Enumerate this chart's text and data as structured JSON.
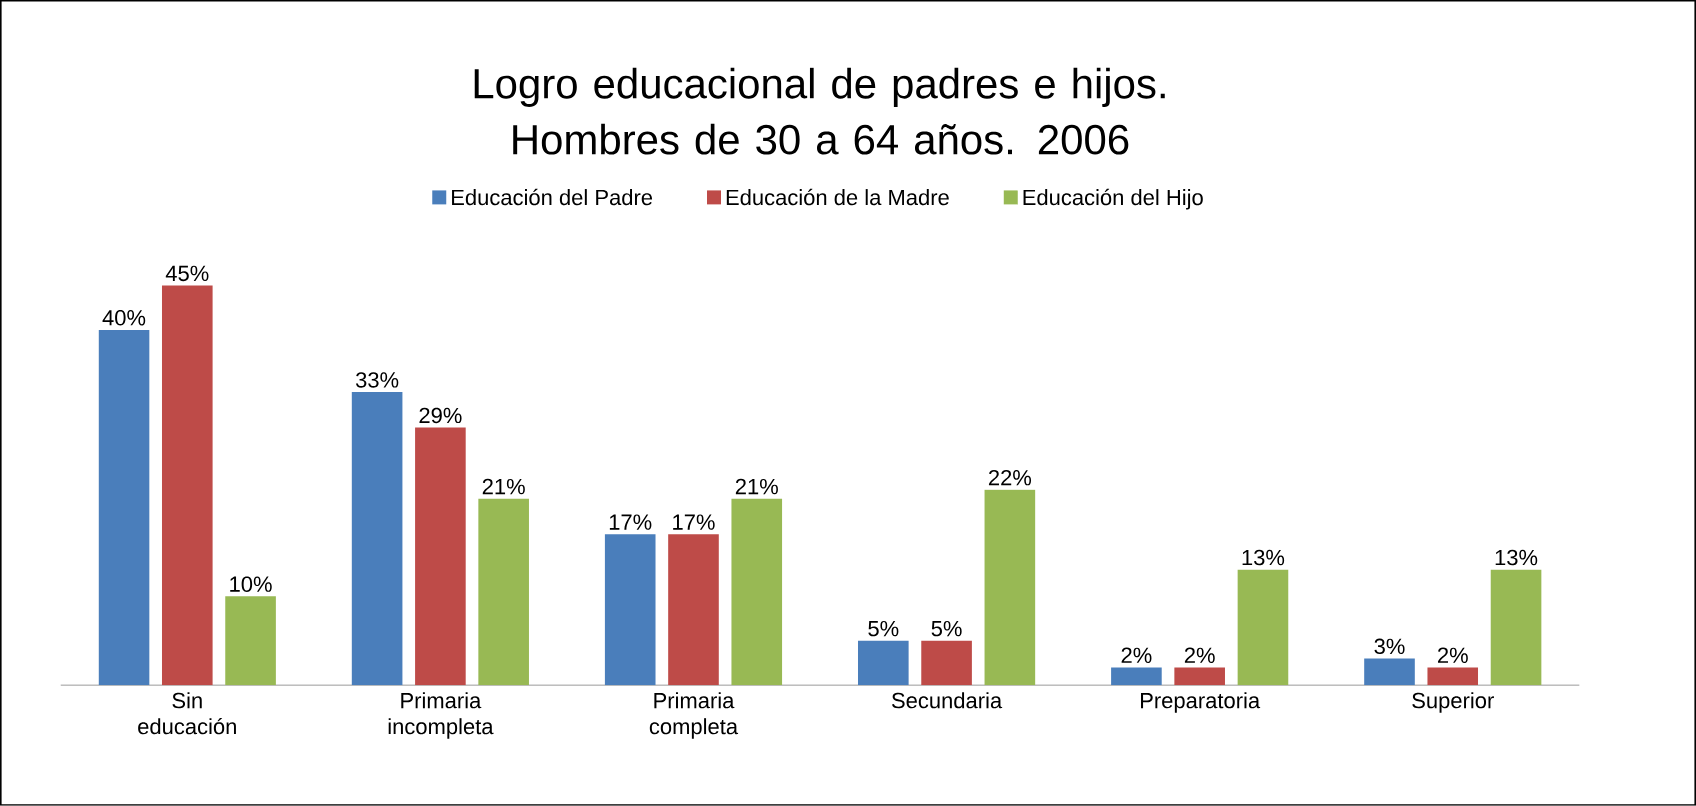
{
  "chart_data": {
    "type": "bar",
    "title": "Logro educacional de padres e hijos. Hombres  de 30 a 64 años. 2006",
    "categories": [
      "Sin educación",
      "Primaria incompleta",
      "Primaria completa",
      "Secundaria",
      "Preparatoria",
      "Superior"
    ],
    "series": [
      {
        "name": "Educación del Padre",
        "color": "#4a7ebb",
        "values": [
          40,
          33,
          17,
          5,
          2,
          3
        ],
        "value_labels": [
          "40%",
          "33%",
          "17%",
          "5%",
          "2%",
          "3%"
        ]
      },
      {
        "name": "Educación de la Madre",
        "color": "#be4b48",
        "values": [
          45,
          29,
          17,
          5,
          2,
          2
        ],
        "value_labels": [
          "45%",
          "29%",
          "17%",
          "5%",
          "2%",
          "2%"
        ]
      },
      {
        "name": "Educación del Hijo",
        "color": "#98b954",
        "values": [
          10,
          21,
          21,
          22,
          13,
          13
        ],
        "value_labels": [
          "10%",
          "21%",
          "21%",
          "22%",
          "13%",
          "13%"
        ]
      }
    ],
    "legend": "top"
  }
}
